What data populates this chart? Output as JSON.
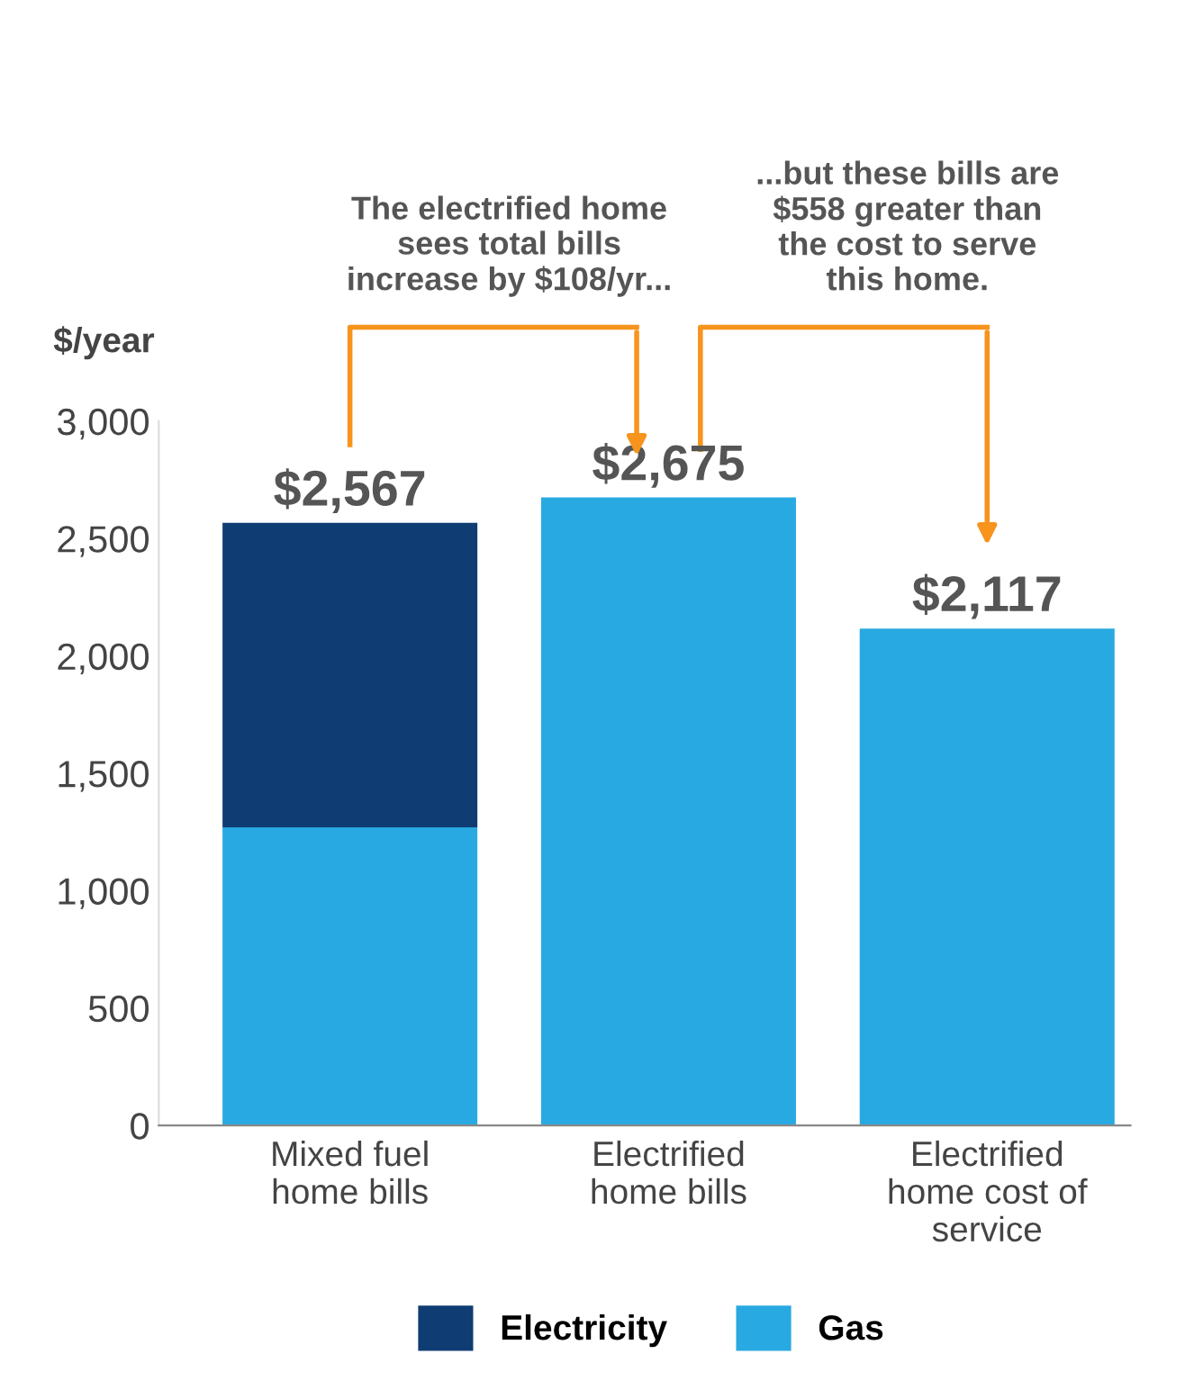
{
  "chart_data": {
    "type": "bar",
    "stacked": true,
    "ylabel": "$/year",
    "categories": [
      "Mixed fuel\nhome bills",
      "Electrified\nhome bills",
      "Electrified\nhome cost of\nservice"
    ],
    "series": [
      {
        "name": "Gas",
        "color": "#29a9e1",
        "values": [
          1270,
          2675,
          2117
        ]
      },
      {
        "name": "Electricity",
        "color": "#0f3d73",
        "values": [
          1297,
          null,
          null
        ]
      }
    ],
    "totals": [
      "$2,567",
      "$2,675",
      "$2,117"
    ],
    "ylim": [
      0,
      3000
    ],
    "yticks": [
      0,
      {
        "value": 500,
        "label": "500"
      },
      {
        "value": 1000,
        "label": "1,000"
      },
      {
        "value": 1500,
        "label": "1,500"
      },
      {
        "value": 2000,
        "label": "2,000"
      },
      {
        "value": 2500,
        "label": "2,500"
      },
      {
        "value": 3000,
        "label": "3,000"
      }
    ],
    "annotations": [
      "The electrified home\nsees total bills\nincrease by $108/yr...",
      "...but these bills are\n$558 greater than\nthe cost to serve\nthis home."
    ],
    "grid": false,
    "legend": "bottom"
  }
}
